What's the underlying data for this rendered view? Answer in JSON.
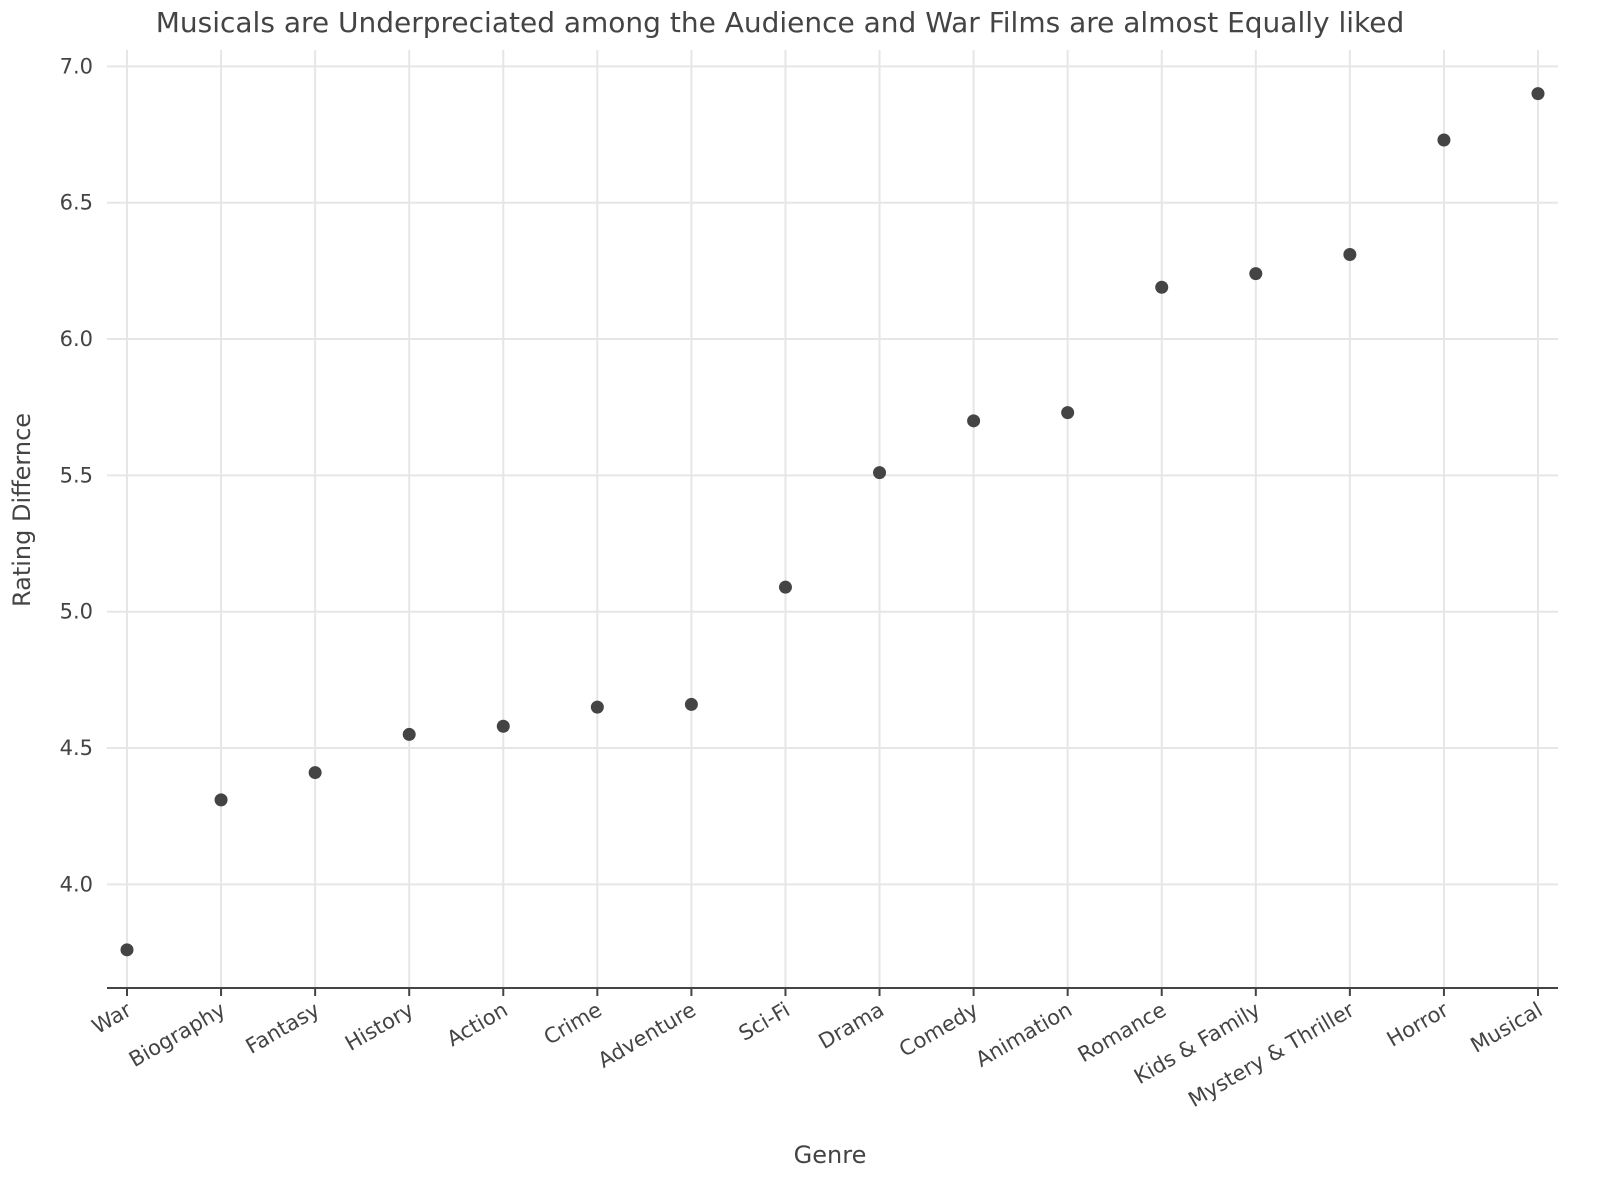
{
  "chart_data": {
    "type": "scatter",
    "title": "Musicals are Underpreciated among the Audience and War Films are almost Equally liked",
    "xlabel": "Genre",
    "ylabel": "Rating Differnce",
    "categories": [
      "War",
      "Biography",
      "Fantasy",
      "History",
      "Action",
      "Crime",
      "Adventure",
      "Sci-Fi",
      "Drama",
      "Comedy",
      "Animation",
      "Romance",
      "Kids & Family",
      "Mystery & Thriller",
      "Horror",
      "Musical"
    ],
    "values": [
      3.76,
      4.31,
      4.41,
      4.55,
      4.58,
      4.65,
      4.66,
      5.09,
      5.51,
      5.7,
      5.73,
      6.19,
      6.24,
      6.31,
      6.73,
      6.9
    ],
    "ylim": [
      3.62,
      7.06
    ],
    "yticks": [
      4.0,
      4.5,
      5.0,
      5.5,
      6.0,
      6.5,
      7.0
    ],
    "ytick_labels": [
      "4.0",
      "4.5",
      "5.0",
      "5.5",
      "6.0",
      "6.5",
      "7.0"
    ],
    "grid": true,
    "marker_color": "#444444",
    "grid_color": "#e6e6e6",
    "axis_color": "#444444"
  }
}
